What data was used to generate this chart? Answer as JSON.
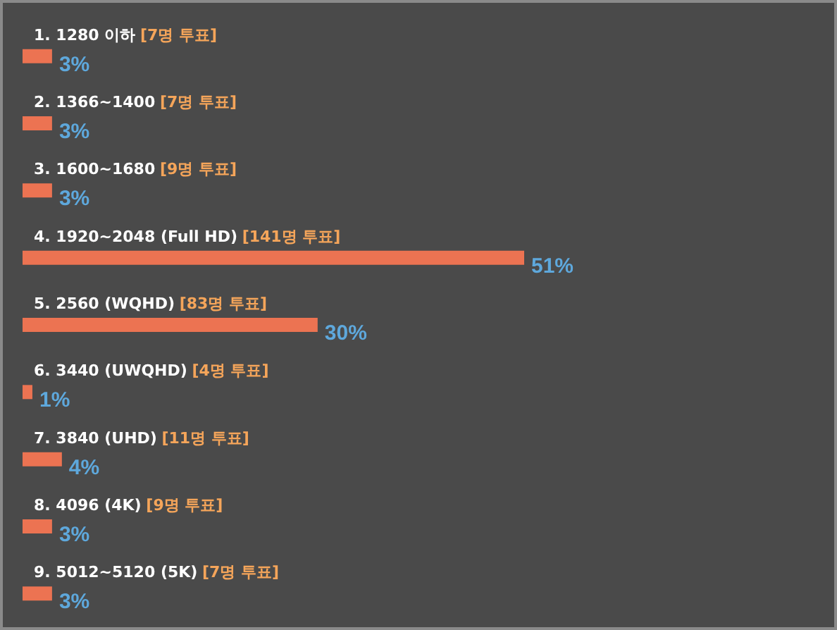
{
  "chart_data": {
    "type": "bar",
    "orientation": "horizontal",
    "categories": [
      "1. 1280 이하",
      "2. 1366~1400",
      "3. 1600~1680",
      "4. 1920~2048 (Full HD)",
      "5. 2560 (WQHD)",
      "6. 3440 (UWQHD)",
      "7. 3840 (UHD)",
      "8. 4096 (4K)",
      "9. 5012~5120 (5K)"
    ],
    "values": [
      3,
      3,
      3,
      51,
      30,
      1,
      4,
      3,
      3
    ],
    "value_labels": [
      "3%",
      "3%",
      "3%",
      "51%",
      "30%",
      "1%",
      "4%",
      "3%",
      "3%"
    ],
    "annotations": [
      "[7명 투표]",
      "[7명 투표]",
      "[9명 투표]",
      "[141명 투표]",
      "[83명 투표]",
      "[4명 투표]",
      "[11명 투표]",
      "[9명 투표]",
      "[7명 투표]"
    ],
    "color": "#ec7352"
  }
}
